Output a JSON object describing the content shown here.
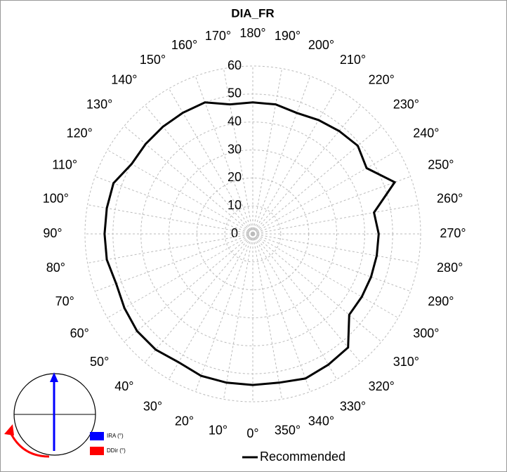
{
  "chart_data": {
    "type": "radar",
    "title": "DIA_FR",
    "categories": [
      "0°",
      "10°",
      "20°",
      "30°",
      "40°",
      "50°",
      "60°",
      "70°",
      "80°",
      "90°",
      "100°",
      "110°",
      "120°",
      "130°",
      "140°",
      "150°",
      "160°",
      "170°",
      "180°",
      "190°",
      "200°",
      "210°",
      "220°",
      "230°",
      "240°",
      "250°",
      "260°",
      "270°",
      "280°",
      "290°",
      "300°",
      "310°",
      "320°",
      "330°",
      "340°",
      "350°"
    ],
    "series": [
      {
        "name": "Recommended",
        "color": "#000000",
        "values": [
          54,
          54,
          54,
          53,
          54,
          54,
          53,
          52,
          53,
          53,
          53,
          53,
          50,
          50,
          50,
          50,
          50,
          47,
          47,
          47,
          46,
          47,
          48,
          49,
          47,
          54,
          44,
          45,
          45,
          45,
          45,
          45,
          53,
          54,
          55,
          54
        ]
      }
    ],
    "rlim": [
      0,
      60
    ],
    "rticks": [
      0,
      10,
      20,
      30,
      40,
      50,
      60
    ],
    "grid": true
  },
  "inset": {
    "legend": [
      "IRA (°)",
      "DDir (°)"
    ],
    "colors": [
      "#0000ff",
      "#ff0000"
    ]
  }
}
